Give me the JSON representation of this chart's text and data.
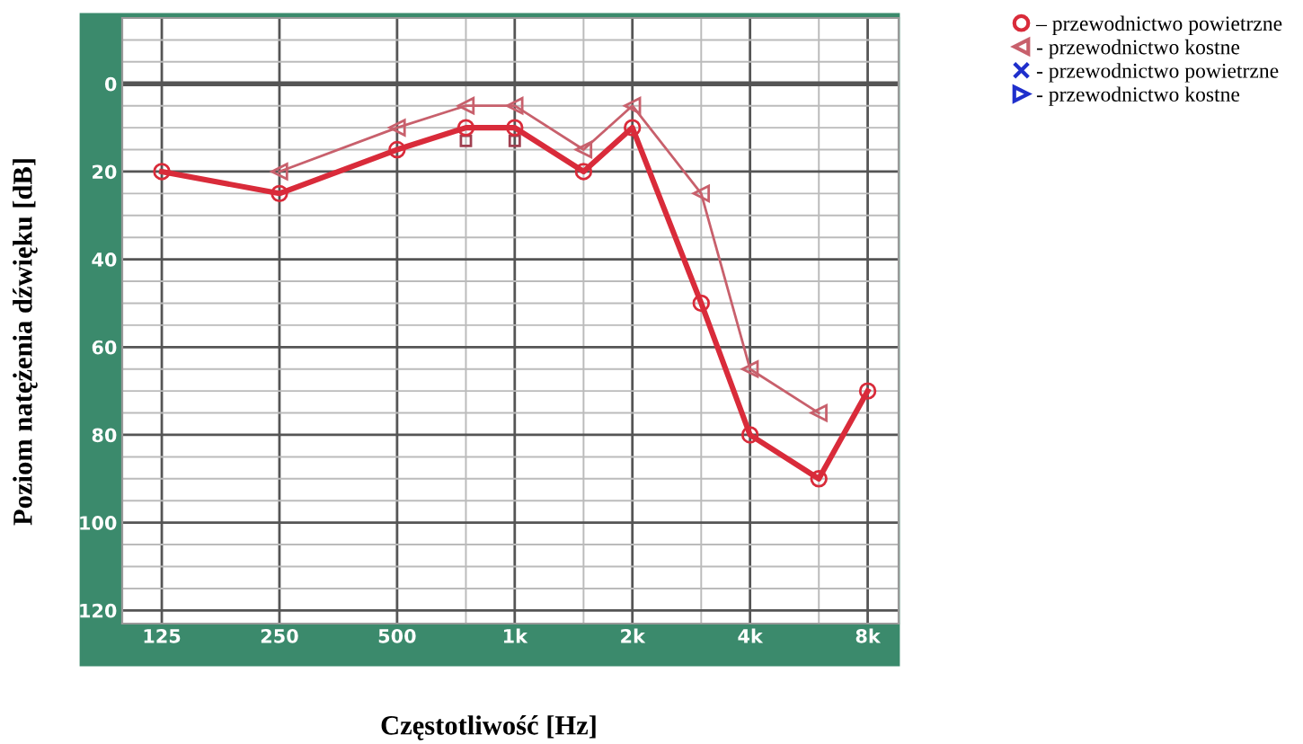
{
  "chart_data": {
    "type": "line",
    "xlabel": "Częstotliwość [Hz]",
    "ylabel": "Poziom natężenia dźwięku [dB]",
    "log": "x",
    "xlim": [
      99,
      9600
    ],
    "xticks": [
      {
        "value": 125,
        "label": "125"
      },
      {
        "value": 250,
        "label": "250"
      },
      {
        "value": 500,
        "label": "500"
      },
      {
        "value": 750,
        "label": null
      },
      {
        "value": 1000,
        "label": "1k"
      },
      {
        "value": 1500,
        "label": null
      },
      {
        "value": 2000,
        "label": "2k"
      },
      {
        "value": 3000,
        "label": null
      },
      {
        "value": 4000,
        "label": "4k"
      },
      {
        "value": 6000,
        "label": null
      },
      {
        "value": 8000,
        "label": "8k"
      }
    ],
    "ylim": [
      123,
      -15
    ],
    "yticks": [
      {
        "value": -10,
        "label": null
      },
      {
        "value": -5,
        "label": null
      },
      0,
      {
        "value": 5,
        "label": null
      },
      {
        "value": 10,
        "label": null
      },
      {
        "value": 15,
        "label": null
      },
      20,
      {
        "value": 25,
        "label": null
      },
      {
        "value": 30,
        "label": null
      },
      {
        "value": 35,
        "label": null
      },
      40,
      {
        "value": 45,
        "label": null
      },
      {
        "value": 50,
        "label": null
      },
      {
        "value": 55,
        "label": null
      },
      60,
      {
        "value": 65,
        "label": null
      },
      {
        "value": 70,
        "label": null
      },
      {
        "value": 75,
        "label": null
      },
      80,
      {
        "value": 85,
        "label": null
      },
      {
        "value": 90,
        "label": null
      },
      {
        "value": 95,
        "label": null
      },
      100,
      {
        "value": 105,
        "label": null
      },
      {
        "value": 110,
        "label": null
      },
      {
        "value": 115,
        "label": null
      },
      120
    ],
    "grid": true,
    "legend": "right",
    "series": [
      {
        "name": "– przewodnictwo powietrzne",
        "color": "#d92b3a",
        "marker": "circle",
        "x": [
          125,
          250,
          500,
          750,
          1000,
          1500,
          2000,
          3000,
          4000,
          6000,
          8000
        ],
        "values": [
          20,
          25,
          15,
          10,
          10,
          20,
          10,
          50,
          80,
          90,
          70
        ]
      },
      {
        "name": "- przewodnictwo kostne",
        "color": "#c8606c",
        "marker": "triangle_left",
        "x": [
          250,
          500,
          750,
          1000,
          1500,
          2000,
          3000,
          4000,
          6000
        ],
        "values": [
          20,
          10,
          5,
          5,
          15,
          5,
          25,
          65,
          75
        ]
      },
      {
        "name": "- przewodnictwo powietrzne",
        "color": "#1f2fcc",
        "marker": "cross"
      },
      {
        "name": "- przewodnictwo kostne",
        "color": "#1f2fcc",
        "marker": "triangle_right"
      },
      {
        "type": "scatter",
        "color": "#a04050",
        "marker": "square",
        "x": [
          750,
          1000
        ],
        "values": [
          13,
          13
        ]
      }
    ]
  }
}
